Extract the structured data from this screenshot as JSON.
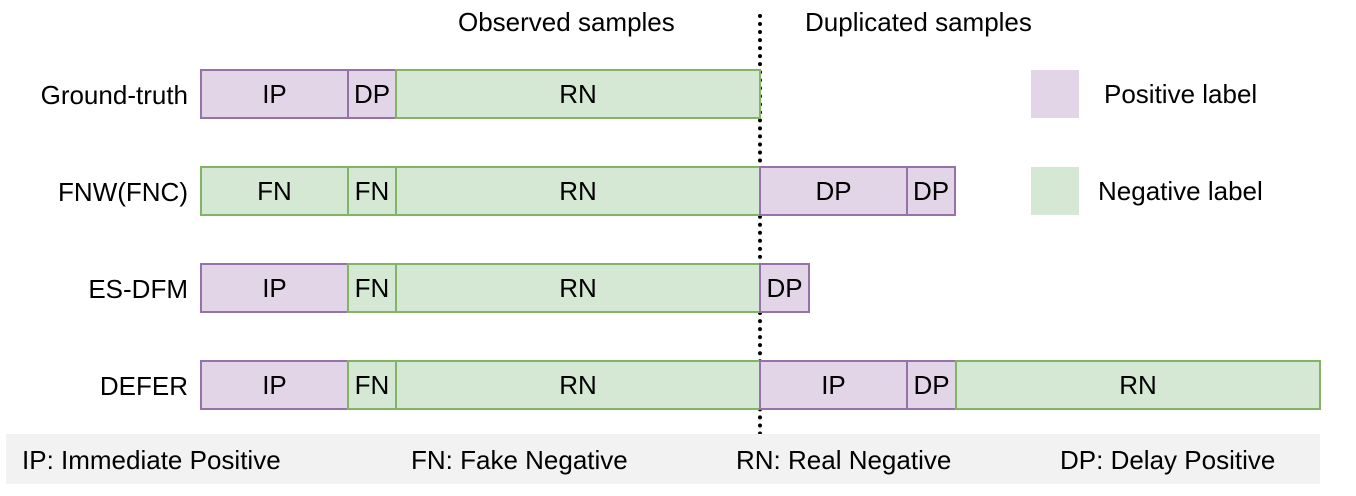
{
  "headers": {
    "observed": "Observed samples",
    "duplicated": "Duplicated samples"
  },
  "rows": [
    {
      "label": "Ground-truth",
      "segments": [
        {
          "text": "IP",
          "type": "pos"
        },
        {
          "text": "DP",
          "type": "pos"
        },
        {
          "text": "RN",
          "type": "neg"
        }
      ]
    },
    {
      "label": "FNW(FNC)",
      "segments": [
        {
          "text": "FN",
          "type": "neg"
        },
        {
          "text": "FN",
          "type": "neg"
        },
        {
          "text": "RN",
          "type": "neg"
        },
        {
          "text": "DP",
          "type": "pos"
        },
        {
          "text": "DP",
          "type": "pos"
        }
      ]
    },
    {
      "label": "ES-DFM",
      "segments": [
        {
          "text": "IP",
          "type": "pos"
        },
        {
          "text": "FN",
          "type": "neg"
        },
        {
          "text": "RN",
          "type": "neg"
        },
        {
          "text": "DP",
          "type": "pos"
        }
      ]
    },
    {
      "label": "DEFER",
      "segments": [
        {
          "text": "IP",
          "type": "pos"
        },
        {
          "text": "FN",
          "type": "neg"
        },
        {
          "text": "RN",
          "type": "neg"
        },
        {
          "text": "IP",
          "type": "pos"
        },
        {
          "text": "DP",
          "type": "pos"
        },
        {
          "text": "RN",
          "type": "neg"
        }
      ]
    }
  ],
  "legend": {
    "positive": "Positive label",
    "negative": "Negative label"
  },
  "colors": {
    "positive_fill": "#e1d5e7",
    "positive_border": "#9673a6",
    "negative_fill": "#d5e8d4",
    "negative_border": "#82b366"
  },
  "footer": {
    "ip": "IP: Immediate Positive",
    "fn": "FN: Fake Negative",
    "rn": "RN: Real Negative",
    "dp": "DP: Delay Positive"
  }
}
